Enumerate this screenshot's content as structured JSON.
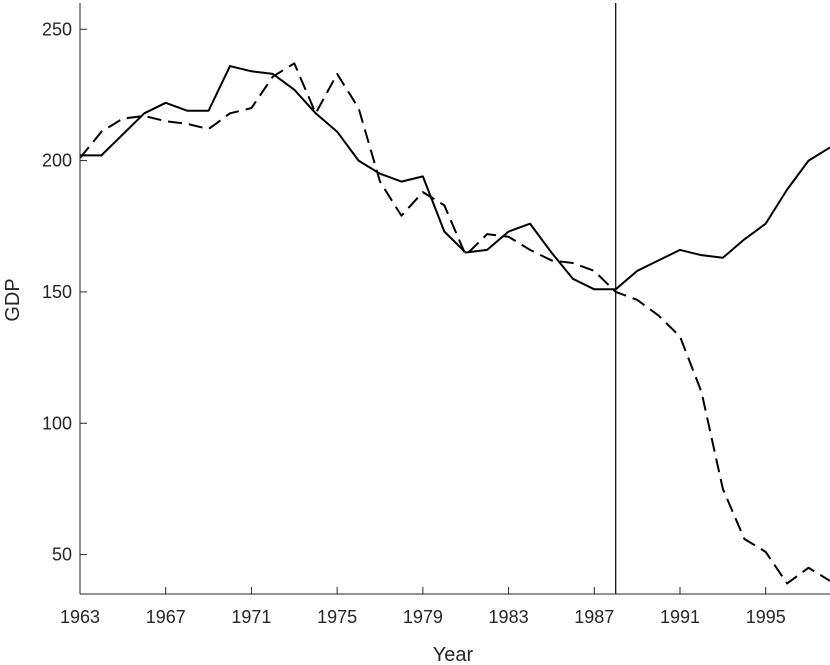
{
  "chart_data": {
    "type": "line",
    "title": "",
    "xlabel": "Year",
    "ylabel": "GDP",
    "xlim": [
      1963,
      1998
    ],
    "ylim": [
      35,
      260
    ],
    "x_ticks": [
      1963,
      1967,
      1971,
      1975,
      1979,
      1983,
      1987,
      1991,
      1995
    ],
    "y_ticks": [
      50,
      100,
      150,
      200,
      250
    ],
    "grid": false,
    "legend": "none",
    "vline": 1988,
    "x": [
      1963,
      1964,
      1965,
      1966,
      1967,
      1968,
      1969,
      1970,
      1971,
      1972,
      1973,
      1974,
      1975,
      1976,
      1977,
      1978,
      1979,
      1980,
      1981,
      1982,
      1983,
      1984,
      1985,
      1986,
      1987,
      1988,
      1989,
      1990,
      1991,
      1992,
      1993,
      1994,
      1995,
      1996,
      1997,
      1998
    ],
    "series": [
      {
        "style": "solid",
        "values": [
          202,
          202,
          210,
          218,
          222,
          219,
          219,
          236,
          234,
          233,
          227,
          218,
          211,
          200,
          195,
          192,
          194,
          173,
          165,
          166,
          173,
          176,
          165,
          155,
          151,
          151,
          158,
          162,
          166,
          164,
          163,
          170,
          176,
          189,
          200,
          205
        ]
      },
      {
        "style": "dashed",
        "values": [
          201,
          211,
          216,
          217,
          215,
          214,
          212,
          218,
          220,
          232,
          237,
          218,
          233,
          220,
          192,
          179,
          188,
          183,
          164,
          172,
          171,
          166,
          162,
          161,
          158,
          150,
          147,
          141,
          133,
          112,
          75,
          56,
          51,
          39,
          45,
          40
        ]
      }
    ]
  }
}
